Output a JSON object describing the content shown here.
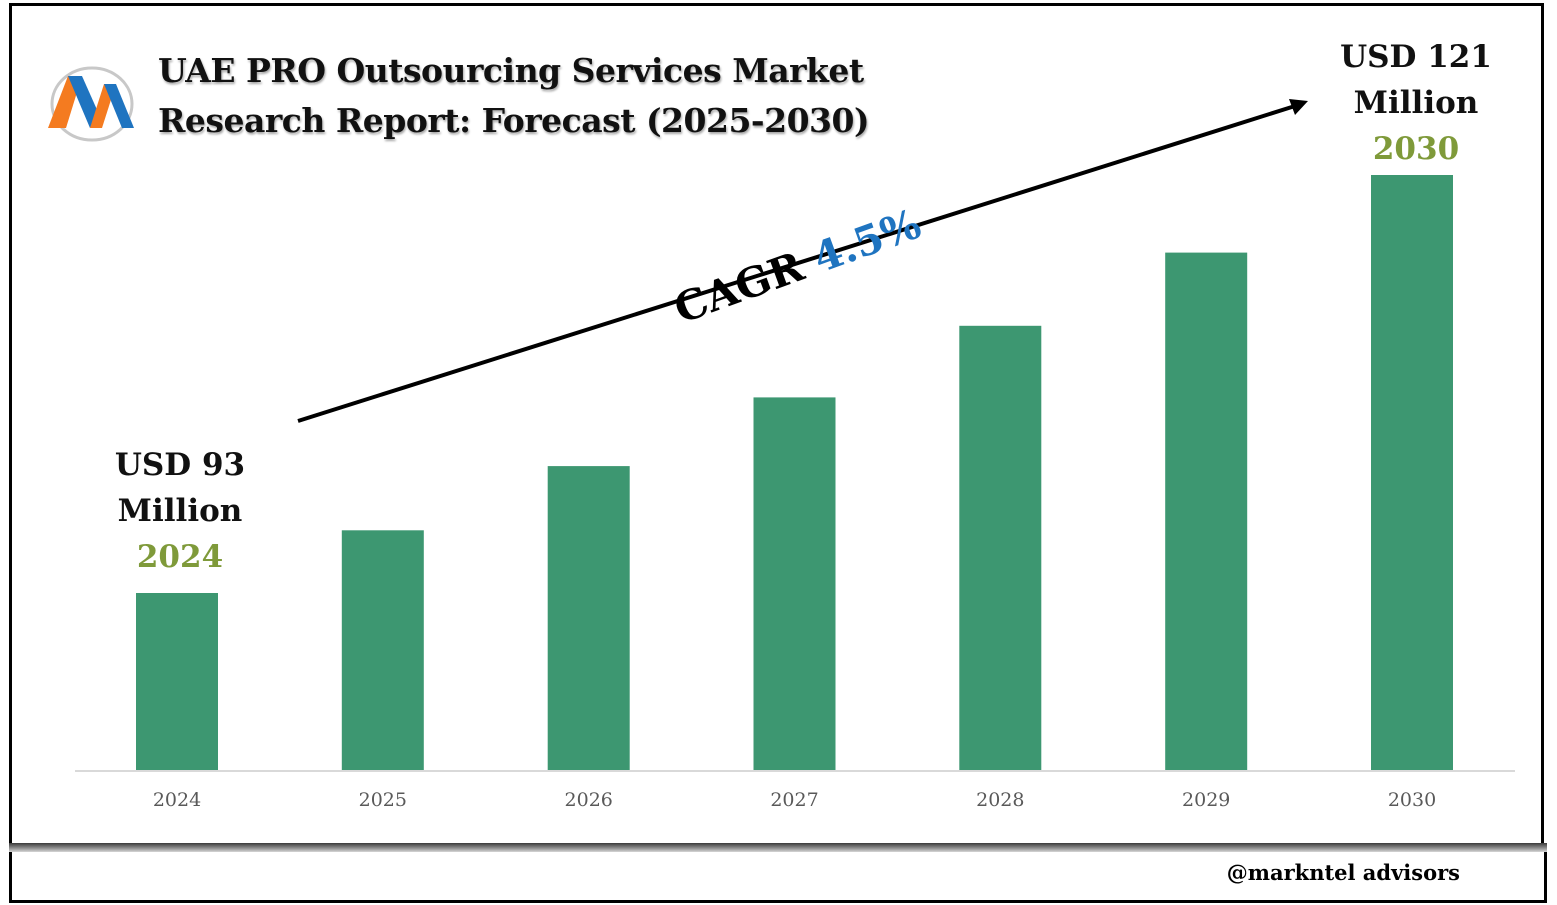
{
  "header": {
    "title_line1": "UAE PRO Outsourcing Services Market",
    "title_line2": "Research Report: Forecast (2025-2030)",
    "logo_icon": "m-monogram-logo-icon"
  },
  "annotations": {
    "start": {
      "value": "USD 93",
      "unit": "Million",
      "year": "2024"
    },
    "end": {
      "value": "USD 121",
      "unit": "Million",
      "year": "2030"
    },
    "cagr_label": "CAGR",
    "cagr_value": "4.5%"
  },
  "footer": {
    "handle": "@markntel advisors"
  },
  "colors": {
    "bar": "#3d9771",
    "year_highlight": "#7f9a3a",
    "cagr_value": "#1f74c0",
    "axis_text": "#595959"
  },
  "chart_data": {
    "type": "bar",
    "title": "UAE PRO Outsourcing Services Market Research Report: Forecast (2025-2030)",
    "xlabel": "",
    "ylabel": "",
    "categories": [
      "2024",
      "2025",
      "2026",
      "2027",
      "2028",
      "2029",
      "2030"
    ],
    "series": [
      {
        "values": [
          93,
          97.2,
          101.5,
          106.1,
          110.9,
          115.8,
          121
        ]
      }
    ],
    "grid": false,
    "legend": "none"
  }
}
